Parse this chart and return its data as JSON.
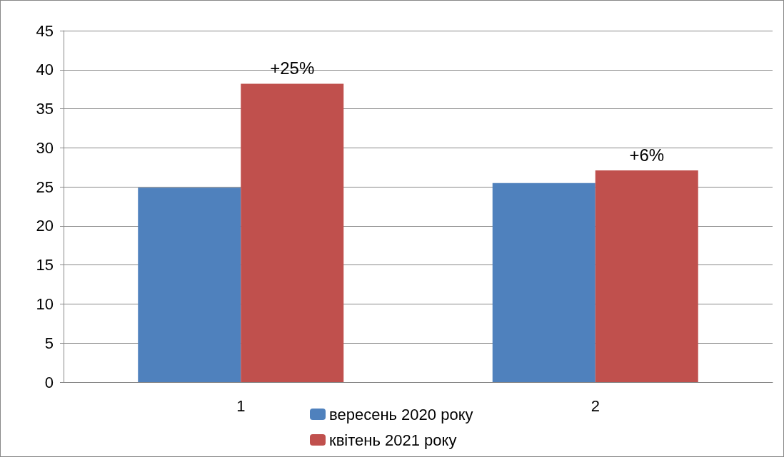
{
  "chart_data": {
    "type": "bar",
    "categories": [
      "1",
      "2"
    ],
    "series": [
      {
        "name": "вересень 2020 року",
        "color": "#4f81bd",
        "values": [
          24.9,
          25.5
        ]
      },
      {
        "name": "квітень 2021 року",
        "color": "#c0504d",
        "values": [
          38.2,
          27.1
        ]
      }
    ],
    "annotations": [
      {
        "text": "+25%",
        "x": "1",
        "y": 38.2
      },
      {
        "text": "+6%",
        "x": "2",
        "y": 27.1
      }
    ],
    "ylim": [
      0,
      45
    ],
    "yticks": [
      0,
      5,
      10,
      15,
      20,
      25,
      30,
      35,
      40,
      45
    ],
    "grid": "y",
    "legend": "bottom"
  }
}
